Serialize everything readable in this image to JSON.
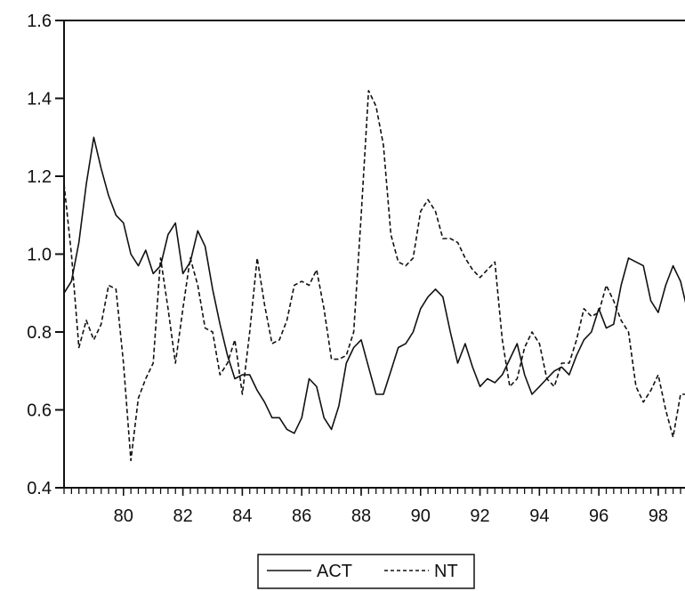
{
  "chart_data": {
    "type": "line",
    "title": "",
    "xlabel": "",
    "ylabel": "",
    "xlim": [
      1978.0,
      1998.9
    ],
    "ylim": [
      0.4,
      1.6
    ],
    "x_ticks": [
      {
        "value": 1980,
        "label": "80"
      },
      {
        "value": 1982,
        "label": "82"
      },
      {
        "value": 1984,
        "label": "84"
      },
      {
        "value": 1986,
        "label": "86"
      },
      {
        "value": 1988,
        "label": "88"
      },
      {
        "value": 1990,
        "label": "90"
      },
      {
        "value": 1992,
        "label": "92"
      },
      {
        "value": 1994,
        "label": "94"
      },
      {
        "value": 1996,
        "label": "96"
      },
      {
        "value": 1998,
        "label": "98"
      }
    ],
    "y_ticks": [
      {
        "value": 0.4,
        "label": "0.4"
      },
      {
        "value": 0.6,
        "label": "0.6"
      },
      {
        "value": 0.8,
        "label": "0.8"
      },
      {
        "value": 1.0,
        "label": "1.0"
      },
      {
        "value": 1.2,
        "label": "1.2"
      },
      {
        "value": 1.4,
        "label": "1.4"
      },
      {
        "value": 1.6,
        "label": "1.6"
      }
    ],
    "grid": false,
    "legend": {
      "placement": "bottom-center"
    },
    "series": [
      {
        "name": "ACT",
        "style": "solid",
        "color": "#111111",
        "points": [
          [
            1978.0,
            0.9
          ],
          [
            1978.25,
            0.93
          ],
          [
            1978.5,
            1.03
          ],
          [
            1978.75,
            1.18
          ],
          [
            1979.0,
            1.3
          ],
          [
            1979.25,
            1.22
          ],
          [
            1979.5,
            1.15
          ],
          [
            1979.75,
            1.1
          ],
          [
            1980.0,
            1.08
          ],
          [
            1980.25,
            1.0
          ],
          [
            1980.5,
            0.97
          ],
          [
            1980.75,
            1.01
          ],
          [
            1981.0,
            0.95
          ],
          [
            1981.25,
            0.97
          ],
          [
            1981.5,
            1.05
          ],
          [
            1981.75,
            1.08
          ],
          [
            1982.0,
            0.95
          ],
          [
            1982.25,
            0.98
          ],
          [
            1982.5,
            1.06
          ],
          [
            1982.75,
            1.02
          ],
          [
            1983.0,
            0.91
          ],
          [
            1983.25,
            0.82
          ],
          [
            1983.5,
            0.74
          ],
          [
            1983.75,
            0.68
          ],
          [
            1984.0,
            0.69
          ],
          [
            1984.25,
            0.69
          ],
          [
            1984.5,
            0.65
          ],
          [
            1984.75,
            0.62
          ],
          [
            1985.0,
            0.58
          ],
          [
            1985.25,
            0.58
          ],
          [
            1985.5,
            0.55
          ],
          [
            1985.75,
            0.54
          ],
          [
            1986.0,
            0.58
          ],
          [
            1986.25,
            0.68
          ],
          [
            1986.5,
            0.66
          ],
          [
            1986.75,
            0.58
          ],
          [
            1987.0,
            0.55
          ],
          [
            1987.25,
            0.61
          ],
          [
            1987.5,
            0.72
          ],
          [
            1987.75,
            0.76
          ],
          [
            1988.0,
            0.78
          ],
          [
            1988.25,
            0.71
          ],
          [
            1988.5,
            0.64
          ],
          [
            1988.75,
            0.64
          ],
          [
            1989.0,
            0.7
          ],
          [
            1989.25,
            0.76
          ],
          [
            1989.5,
            0.77
          ],
          [
            1989.75,
            0.8
          ],
          [
            1990.0,
            0.86
          ],
          [
            1990.25,
            0.89
          ],
          [
            1990.5,
            0.91
          ],
          [
            1990.75,
            0.89
          ],
          [
            1991.0,
            0.8
          ],
          [
            1991.25,
            0.72
          ],
          [
            1991.5,
            0.77
          ],
          [
            1991.75,
            0.71
          ],
          [
            1992.0,
            0.66
          ],
          [
            1992.25,
            0.68
          ],
          [
            1992.5,
            0.67
          ],
          [
            1992.75,
            0.69
          ],
          [
            1993.0,
            0.73
          ],
          [
            1993.25,
            0.77
          ],
          [
            1993.5,
            0.69
          ],
          [
            1993.75,
            0.64
          ],
          [
            1994.0,
            0.66
          ],
          [
            1994.25,
            0.68
          ],
          [
            1994.5,
            0.7
          ],
          [
            1994.75,
            0.71
          ],
          [
            1995.0,
            0.69
          ],
          [
            1995.25,
            0.74
          ],
          [
            1995.5,
            0.78
          ],
          [
            1995.75,
            0.8
          ],
          [
            1996.0,
            0.86
          ],
          [
            1996.25,
            0.81
          ],
          [
            1996.5,
            0.82
          ],
          [
            1996.75,
            0.92
          ],
          [
            1997.0,
            0.99
          ],
          [
            1997.25,
            0.98
          ],
          [
            1997.5,
            0.97
          ],
          [
            1997.75,
            0.88
          ],
          [
            1998.0,
            0.85
          ],
          [
            1998.25,
            0.92
          ],
          [
            1998.5,
            0.97
          ],
          [
            1998.75,
            0.93
          ],
          [
            1999.0,
            0.85
          ],
          [
            1999.25,
            0.84
          ]
        ]
      },
      {
        "name": "NT",
        "style": "dashed",
        "color": "#111111",
        "points": [
          [
            1978.0,
            1.18
          ],
          [
            1978.25,
            1.0
          ],
          [
            1978.5,
            0.76
          ],
          [
            1978.75,
            0.83
          ],
          [
            1979.0,
            0.78
          ],
          [
            1979.25,
            0.82
          ],
          [
            1979.5,
            0.92
          ],
          [
            1979.75,
            0.91
          ],
          [
            1980.0,
            0.72
          ],
          [
            1980.25,
            0.47
          ],
          [
            1980.5,
            0.63
          ],
          [
            1980.75,
            0.68
          ],
          [
            1981.0,
            0.72
          ],
          [
            1981.25,
            0.99
          ],
          [
            1981.5,
            0.86
          ],
          [
            1981.75,
            0.72
          ],
          [
            1982.0,
            0.86
          ],
          [
            1982.25,
            0.99
          ],
          [
            1982.5,
            0.92
          ],
          [
            1982.75,
            0.81
          ],
          [
            1983.0,
            0.8
          ],
          [
            1983.25,
            0.69
          ],
          [
            1983.5,
            0.72
          ],
          [
            1983.75,
            0.78
          ],
          [
            1984.0,
            0.64
          ],
          [
            1984.25,
            0.8
          ],
          [
            1984.5,
            0.99
          ],
          [
            1984.75,
            0.87
          ],
          [
            1985.0,
            0.77
          ],
          [
            1985.25,
            0.78
          ],
          [
            1985.5,
            0.83
          ],
          [
            1985.75,
            0.92
          ],
          [
            1986.0,
            0.93
          ],
          [
            1986.25,
            0.92
          ],
          [
            1986.5,
            0.96
          ],
          [
            1986.75,
            0.86
          ],
          [
            1987.0,
            0.73
          ],
          [
            1987.25,
            0.73
          ],
          [
            1987.5,
            0.74
          ],
          [
            1987.75,
            0.8
          ],
          [
            1988.0,
            1.1
          ],
          [
            1988.25,
            1.42
          ],
          [
            1988.5,
            1.38
          ],
          [
            1988.75,
            1.28
          ],
          [
            1989.0,
            1.05
          ],
          [
            1989.25,
            0.98
          ],
          [
            1989.5,
            0.97
          ],
          [
            1989.75,
            0.99
          ],
          [
            1990.0,
            1.11
          ],
          [
            1990.25,
            1.14
          ],
          [
            1990.5,
            1.11
          ],
          [
            1990.75,
            1.04
          ],
          [
            1991.0,
            1.04
          ],
          [
            1991.25,
            1.03
          ],
          [
            1991.5,
            0.99
          ],
          [
            1991.75,
            0.96
          ],
          [
            1992.0,
            0.94
          ],
          [
            1992.25,
            0.96
          ],
          [
            1992.5,
            0.98
          ],
          [
            1992.75,
            0.78
          ],
          [
            1993.0,
            0.66
          ],
          [
            1993.25,
            0.68
          ],
          [
            1993.5,
            0.76
          ],
          [
            1993.75,
            0.8
          ],
          [
            1994.0,
            0.77
          ],
          [
            1994.25,
            0.68
          ],
          [
            1994.5,
            0.66
          ],
          [
            1994.75,
            0.72
          ],
          [
            1995.0,
            0.72
          ],
          [
            1995.25,
            0.78
          ],
          [
            1995.5,
            0.86
          ],
          [
            1995.75,
            0.84
          ],
          [
            1996.0,
            0.85
          ],
          [
            1996.25,
            0.92
          ],
          [
            1996.5,
            0.88
          ],
          [
            1996.75,
            0.83
          ],
          [
            1997.0,
            0.8
          ],
          [
            1997.25,
            0.66
          ],
          [
            1997.5,
            0.62
          ],
          [
            1997.75,
            0.65
          ],
          [
            1998.0,
            0.69
          ],
          [
            1998.25,
            0.6
          ],
          [
            1998.5,
            0.53
          ],
          [
            1998.75,
            0.64
          ],
          [
            1999.0,
            0.64
          ],
          [
            1999.25,
            0.55
          ]
        ]
      }
    ]
  }
}
